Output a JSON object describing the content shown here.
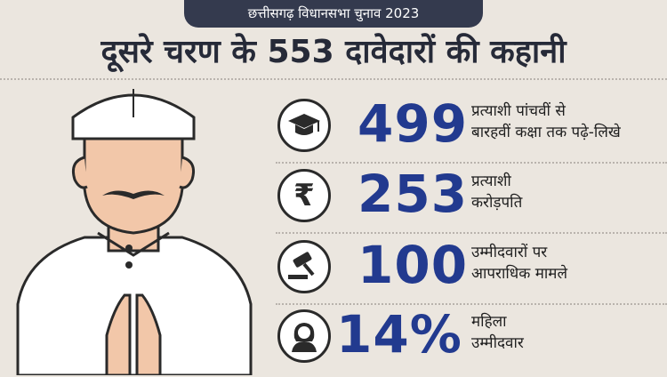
{
  "banner": {
    "label": "छत्तीसगढ़ विधानसभा चुनाव 2023"
  },
  "headline": "दूसरे चरण के 553 दावेदारों की कहानी",
  "stats": [
    {
      "icon": "graduation-cap-icon",
      "value": "499",
      "line1": "प्रत्याशी पांचवीं से",
      "line2": "बारहवीं कक्षा तक पढ़े-लिखे"
    },
    {
      "icon": "rupee-icon",
      "value": "253",
      "line1": "प्रत्याशी",
      "line2": "करोड़पति"
    },
    {
      "icon": "gavel-icon",
      "value": "100",
      "line1": "उम्मीदवारों  पर",
      "line2": "आपराधिक मामले"
    },
    {
      "icon": "woman-icon",
      "value": "14%",
      "line1": "महिला",
      "line2": "उम्मीदवार"
    }
  ],
  "colors": {
    "background": "#ebe6df",
    "banner": "#343a4e",
    "number": "#223a8f",
    "text": "#262a38"
  }
}
